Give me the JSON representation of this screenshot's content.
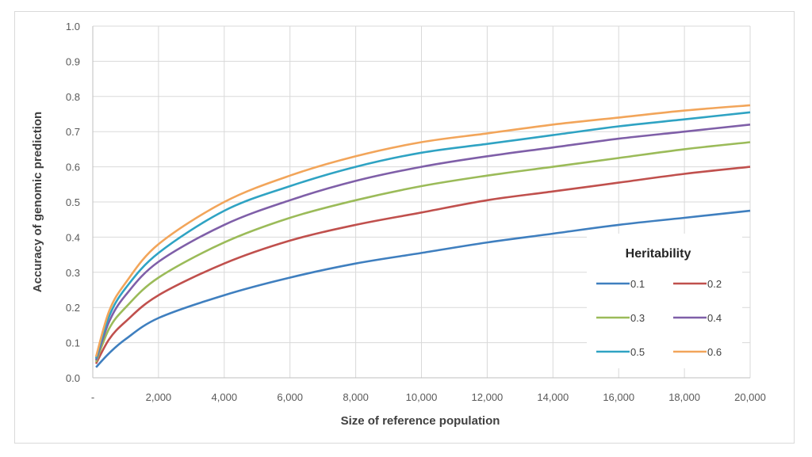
{
  "chart_data": {
    "type": "line",
    "xlabel": "Size of reference population",
    "ylabel": "Accuracy of genomic prediction",
    "xlim": [
      0,
      20000
    ],
    "ylim": [
      0,
      1.0
    ],
    "x_ticks": [
      "-",
      "2,000",
      "4,000",
      "6,000",
      "8,000",
      "10,000",
      "12,000",
      "14,000",
      "16,000",
      "18,000",
      "20,000"
    ],
    "y_ticks": [
      "0.0",
      "0.1",
      "0.2",
      "0.3",
      "0.4",
      "0.5",
      "0.6",
      "0.7",
      "0.8",
      "0.9",
      "1.0"
    ],
    "grid": true,
    "legend": {
      "title": "Heritability",
      "placement": "bottom-right"
    },
    "x": [
      100,
      500,
      1000,
      2000,
      4000,
      6000,
      8000,
      10000,
      12000,
      14000,
      16000,
      18000,
      20000
    ],
    "series": [
      {
        "name": "0.1",
        "color": "#3f7fbf",
        "values": [
          0.03,
          0.07,
          0.11,
          0.17,
          0.235,
          0.285,
          0.325,
          0.355,
          0.385,
          0.41,
          0.435,
          0.455,
          0.475
        ]
      },
      {
        "name": "0.2",
        "color": "#c0504d",
        "values": [
          0.04,
          0.11,
          0.16,
          0.235,
          0.325,
          0.39,
          0.435,
          0.47,
          0.505,
          0.53,
          0.555,
          0.58,
          0.6
        ]
      },
      {
        "name": "0.3",
        "color": "#9bbb59",
        "values": [
          0.045,
          0.14,
          0.2,
          0.285,
          0.385,
          0.455,
          0.505,
          0.545,
          0.575,
          0.6,
          0.625,
          0.65,
          0.67
        ]
      },
      {
        "name": "0.4",
        "color": "#7f5fa8",
        "values": [
          0.05,
          0.16,
          0.235,
          0.33,
          0.435,
          0.505,
          0.56,
          0.6,
          0.63,
          0.655,
          0.68,
          0.7,
          0.72
        ]
      },
      {
        "name": "0.5",
        "color": "#2fa3c3",
        "values": [
          0.055,
          0.175,
          0.255,
          0.355,
          0.475,
          0.545,
          0.6,
          0.64,
          0.665,
          0.69,
          0.715,
          0.735,
          0.755
        ]
      },
      {
        "name": "0.6",
        "color": "#f2a55a",
        "values": [
          0.06,
          0.19,
          0.27,
          0.38,
          0.5,
          0.575,
          0.63,
          0.67,
          0.695,
          0.72,
          0.74,
          0.76,
          0.775
        ]
      }
    ]
  }
}
